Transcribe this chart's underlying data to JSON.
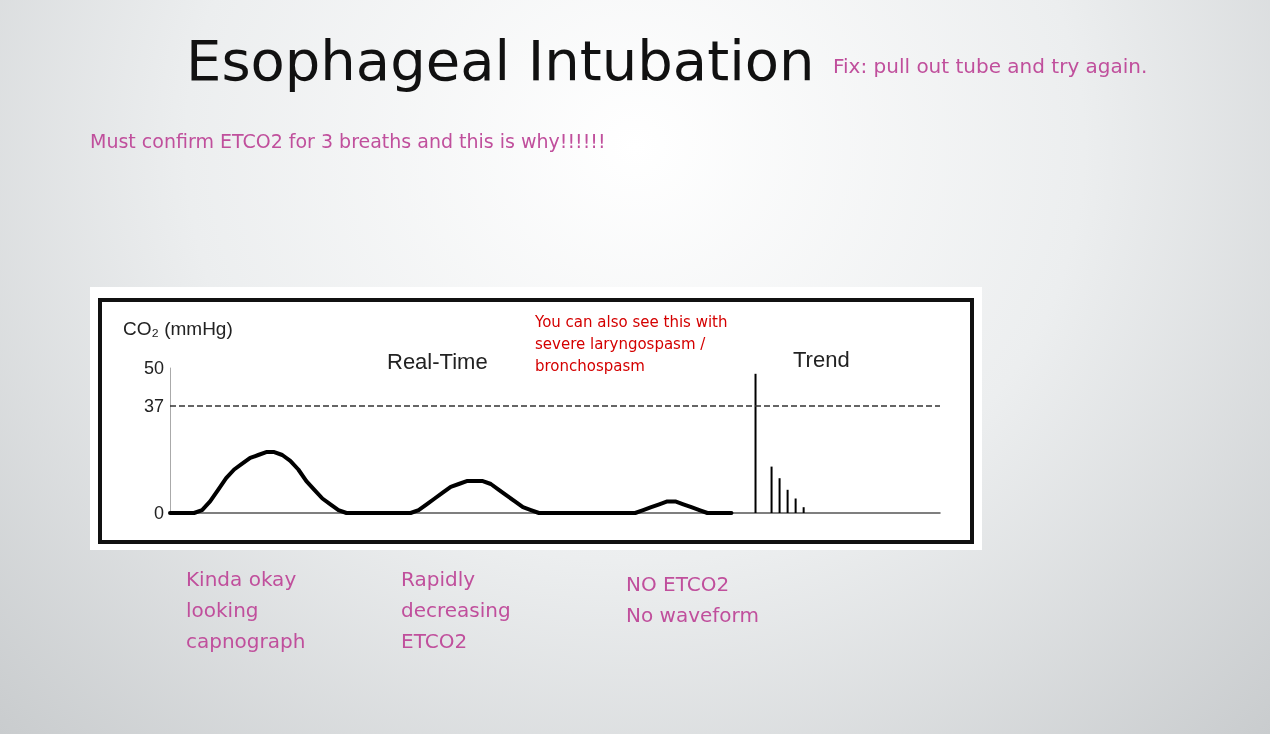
{
  "chart_data": {
    "type": "line",
    "title": "Esophageal Intubation",
    "ylabel": "CO₂ (mmHg)",
    "annotations": [
      "Fix: pull out tube and try again.",
      "Must confirm ETCO2 for 3 breaths and this is why!!!!!!",
      "You can also see this with\nsevere laryngospasm /\nbronchospasm",
      "Real-Time",
      "Trend",
      "Kinda okay\nlooking\ncapnograph",
      "Rapidly\ndecreasing\nETCO2",
      "NO ETCO2\nNo waveform"
    ],
    "categories": [
      null,
      null,
      null,
      null,
      null,
      null,
      null,
      null,
      null,
      null,
      null,
      null,
      null,
      null,
      null,
      null,
      null,
      null,
      null,
      null,
      null,
      null,
      null,
      null,
      null,
      null,
      null,
      null,
      null,
      null,
      null,
      null,
      null,
      null,
      null,
      null,
      null,
      null,
      null,
      null,
      null,
      null,
      null,
      null,
      null,
      null,
      null,
      null,
      null,
      null,
      null,
      null,
      null,
      null,
      null,
      null,
      null,
      null,
      null,
      null,
      null,
      null,
      null,
      null,
      null,
      null,
      null,
      null,
      null,
      null,
      null,
      null,
      null,
      null,
      null,
      null,
      null,
      null,
      null,
      null,
      null,
      null,
      null,
      null,
      null,
      null,
      null,
      null,
      null,
      null,
      null,
      null,
      null,
      null,
      null,
      null,
      null
    ],
    "series": [
      {
        "color": "#000000",
        "values": [
          0,
          0,
          0,
          0,
          1,
          4,
          8,
          12,
          15,
          17,
          19,
          20,
          21,
          21,
          20,
          18,
          15,
          11,
          8,
          5,
          3,
          1,
          0,
          0,
          0,
          0,
          0,
          0,
          0,
          0,
          0,
          1,
          3,
          5,
          7,
          9,
          10,
          11,
          11,
          11,
          10,
          8,
          6,
          4,
          2,
          1,
          0,
          0,
          0,
          0,
          0,
          0,
          0,
          0,
          0,
          0,
          0,
          0,
          0,
          1,
          2,
          3,
          4,
          4,
          3,
          2,
          1,
          0,
          0,
          0,
          0,
          null,
          null,
          null,
          null,
          null,
          null,
          null,
          null,
          null,
          null,
          null,
          null,
          null,
          null,
          null,
          null,
          null,
          null,
          null,
          null,
          null,
          null,
          null,
          null,
          null,
          null
        ]
      },
      {
        "type": "bar",
        "color": "#000000",
        "values": [
          null,
          null,
          null,
          null,
          null,
          null,
          null,
          null,
          null,
          null,
          null,
          null,
          null,
          null,
          null,
          null,
          null,
          null,
          null,
          null,
          null,
          null,
          null,
          null,
          null,
          null,
          null,
          null,
          null,
          null,
          null,
          null,
          null,
          null,
          null,
          null,
          null,
          null,
          null,
          null,
          null,
          null,
          null,
          null,
          null,
          null,
          null,
          null,
          null,
          null,
          null,
          null,
          null,
          null,
          null,
          null,
          null,
          null,
          null,
          null,
          null,
          null,
          null,
          null,
          null,
          null,
          null,
          null,
          null,
          null,
          null,
          null,
          null,
          48,
          null,
          16,
          12,
          8,
          5,
          2,
          null,
          null,
          null,
          null,
          null,
          null,
          null,
          null,
          null,
          null,
          null,
          null,
          null,
          null,
          null,
          null,
          null
        ]
      }
    ],
    "ylim": [
      0,
      50
    ],
    "yticks": [
      0,
      37,
      50
    ],
    "grid": false,
    "ref_lines": [
      {
        "axis": "y",
        "value": 37,
        "line_style": "dashed",
        "color": "#333333"
      }
    ]
  }
}
